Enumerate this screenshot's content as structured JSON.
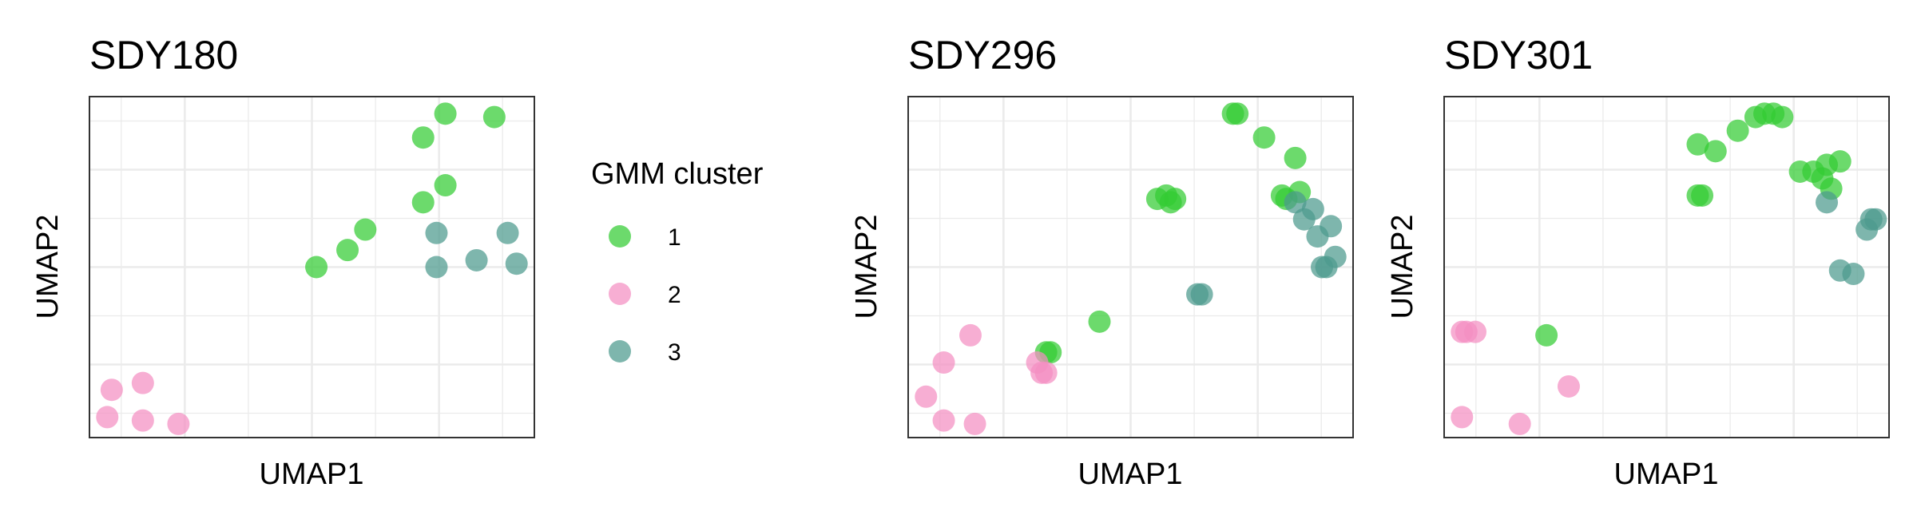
{
  "legend": {
    "title": "GMM cluster",
    "items": [
      {
        "label": "1",
        "color": "#33CC33"
      },
      {
        "label": "2",
        "color": "#F48FC2"
      },
      {
        "label": "3",
        "color": "#4C9A8E"
      }
    ]
  },
  "chart_data": [
    {
      "type": "scatter",
      "title": "SDY180",
      "xlabel": "UMAP1",
      "ylabel": "UMAP2",
      "xlim": [
        0,
        1
      ],
      "ylim": [
        0,
        1
      ],
      "grid": true,
      "tick_labels_shown": false,
      "legend_position": "right",
      "series": [
        {
          "name": "1",
          "points": [
            [
              0.8,
              0.95
            ],
            [
              0.91,
              0.94
            ],
            [
              0.75,
              0.88
            ],
            [
              0.8,
              0.74
            ],
            [
              0.75,
              0.69
            ],
            [
              0.62,
              0.61
            ],
            [
              0.58,
              0.55
            ],
            [
              0.51,
              0.5
            ]
          ]
        },
        {
          "name": "2",
          "points": [
            [
              0.05,
              0.14
            ],
            [
              0.12,
              0.16
            ],
            [
              0.04,
              0.06
            ],
            [
              0.12,
              0.05
            ],
            [
              0.2,
              0.04
            ]
          ]
        },
        {
          "name": "3",
          "points": [
            [
              0.78,
              0.6
            ],
            [
              0.94,
              0.6
            ],
            [
              0.87,
              0.52
            ],
            [
              0.78,
              0.5
            ],
            [
              0.96,
              0.51
            ]
          ]
        }
      ]
    },
    {
      "type": "scatter",
      "title": "SDY296",
      "xlabel": "UMAP1",
      "ylabel": "UMAP2",
      "xlim": [
        0,
        1
      ],
      "ylim": [
        0,
        1
      ],
      "grid": true,
      "tick_labels_shown": false,
      "series": [
        {
          "name": "1",
          "points": [
            [
              0.73,
              0.95
            ],
            [
              0.74,
              0.95
            ],
            [
              0.8,
              0.88
            ],
            [
              0.87,
              0.82
            ],
            [
              0.84,
              0.71
            ],
            [
              0.88,
              0.72
            ],
            [
              0.85,
              0.7
            ],
            [
              0.56,
              0.7
            ],
            [
              0.58,
              0.71
            ],
            [
              0.6,
              0.7
            ],
            [
              0.59,
              0.69
            ],
            [
              0.43,
              0.34
            ],
            [
              0.31,
              0.25
            ],
            [
              0.32,
              0.25
            ]
          ]
        },
        {
          "name": "2",
          "points": [
            [
              0.14,
              0.3
            ],
            [
              0.08,
              0.22
            ],
            [
              0.04,
              0.12
            ],
            [
              0.08,
              0.05
            ],
            [
              0.15,
              0.04
            ],
            [
              0.29,
              0.22
            ],
            [
              0.31,
              0.19
            ],
            [
              0.3,
              0.19
            ]
          ]
        },
        {
          "name": "3",
          "points": [
            [
              0.87,
              0.69
            ],
            [
              0.91,
              0.67
            ],
            [
              0.89,
              0.64
            ],
            [
              0.92,
              0.59
            ],
            [
              0.95,
              0.62
            ],
            [
              0.96,
              0.53
            ],
            [
              0.93,
              0.5
            ],
            [
              0.94,
              0.5
            ],
            [
              0.65,
              0.42
            ],
            [
              0.66,
              0.42
            ]
          ]
        }
      ]
    },
    {
      "type": "scatter",
      "title": "SDY301",
      "xlabel": "UMAP1",
      "ylabel": "UMAP2",
      "xlim": [
        0,
        1
      ],
      "ylim": [
        0,
        1
      ],
      "grid": true,
      "tick_labels_shown": false,
      "series": [
        {
          "name": "1",
          "points": [
            [
              0.7,
              0.94
            ],
            [
              0.72,
              0.95
            ],
            [
              0.74,
              0.95
            ],
            [
              0.76,
              0.94
            ],
            [
              0.66,
              0.9
            ],
            [
              0.57,
              0.86
            ],
            [
              0.61,
              0.84
            ],
            [
              0.86,
              0.8
            ],
            [
              0.89,
              0.81
            ],
            [
              0.83,
              0.78
            ],
            [
              0.8,
              0.78
            ],
            [
              0.85,
              0.76
            ],
            [
              0.87,
              0.73
            ],
            [
              0.58,
              0.71
            ],
            [
              0.57,
              0.71
            ],
            [
              0.23,
              0.3
            ]
          ]
        },
        {
          "name": "2",
          "points": [
            [
              0.04,
              0.31
            ],
            [
              0.05,
              0.31
            ],
            [
              0.07,
              0.31
            ],
            [
              0.04,
              0.06
            ],
            [
              0.17,
              0.04
            ],
            [
              0.28,
              0.15
            ]
          ]
        },
        {
          "name": "3",
          "points": [
            [
              0.86,
              0.69
            ],
            [
              0.95,
              0.61
            ],
            [
              0.96,
              0.64
            ],
            [
              0.97,
              0.64
            ],
            [
              0.89,
              0.49
            ],
            [
              0.92,
              0.48
            ]
          ]
        }
      ]
    }
  ]
}
